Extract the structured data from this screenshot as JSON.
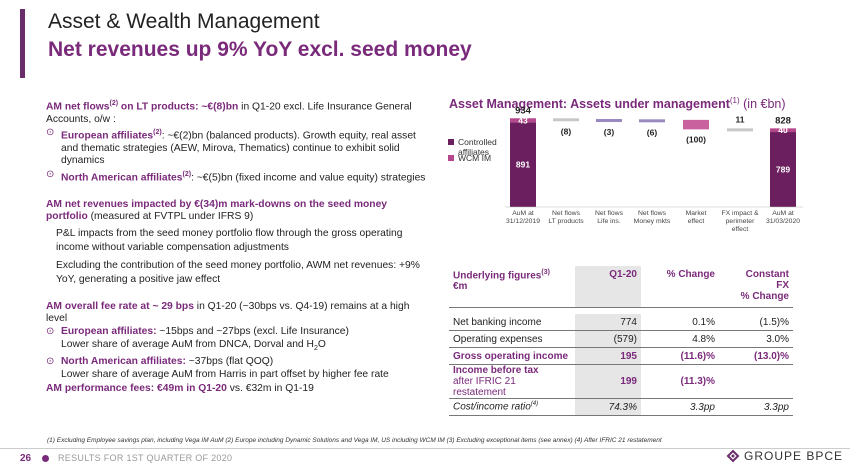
{
  "page": {
    "title": "Asset & Wealth Management",
    "subtitle": "Net revenues up 9% YoY excl. seed money",
    "page_number": "26",
    "footer_label": "RESULTS FOR 1ST QUARTER OF 2020",
    "brand": "GROUPE BPCE",
    "footnote": "(1) Excluding Employee savings plan, including Vega IM AuM (2) Europe including Dynamic Solutions and Vega IM, US including WCM IM (3) Excluding exceptional items (see annex) (4) After IFRIC 21 restatement"
  },
  "left": {
    "p1_lead": "AM net flows",
    "p1_sup": "(2)",
    "p1_lead2": " on LT products:  ~€(8)bn",
    "p1_rest": " in Q1-20 excl. Life Insurance General Accounts, o/w :",
    "b1_lead": "European affiliates",
    "b1_sup": "(2)",
    "b1_rest": ": ~€(2)bn (balanced products). Growth equity, real asset and thematic strategies (AEW, Mirova, Thematics) continue to exhibit solid dynamics",
    "b2_lead": "North American affiliates",
    "b2_sup": "(2)",
    "b2_rest": ": ~€(5)bn (fixed income and value equity) strategies",
    "p2_lead": "AM net revenues impacted by €(34)m mark-downs on the seed money portfolio",
    "p2_rest": " (measured at FVTPL under IFRS 9)",
    "p2_a": "P&L impacts from the seed money portfolio flow through the gross operating income without variable compensation adjustments",
    "p2_b": "Excluding the contribution of the seed money portfolio, AWM net revenues: +9% YoY, generating a positive jaw effect",
    "p3_lead": "AM overall fee rate at ~ 29 bps",
    "p3_rest": " in Q1-20 (~30bps vs. Q4-19) remains at a high level",
    "b3_lead": "European affiliates:",
    "b3_rest1": " ~15bps and ~27bps (excl. Life Insurance)",
    "b3_rest2a": "Lower share of average AuM from DNCA, Dorval and H",
    "b3_sub": "2",
    "b3_rest2b": "O",
    "b4_lead": "North American affiliates:",
    "b4_rest1": " ~37bps (flat QOQ)",
    "b4_rest2": "Lower share of average AuM from Harris in part offset by higher fee rate",
    "p4_lead": "AM performance fees: €49m in Q1-20",
    "p4_rest": " vs. €32m in Q1-19"
  },
  "chart_title": {
    "bold": "Asset Management: Assets under management",
    "sup": "(1)",
    "rest": " (in €bn)"
  },
  "chart_data": {
    "type": "waterfall",
    "title": "Asset Management: Assets under management(1) (in €bn)",
    "legend": [
      {
        "name": "Controlled affiliates",
        "color": "#6b1f5f"
      },
      {
        "name": "WCM IM",
        "color": "#b5488c"
      }
    ],
    "categories": [
      "AuM at 31/12/2019",
      "Net flows LT products",
      "Net flows Life ins.",
      "Net flows Money mkts",
      "Market effect",
      "FX impact & perimeter effect",
      "AuM at 31/03/2020"
    ],
    "category_lines": [
      [
        "AuM at",
        "31/12/2019"
      ],
      [
        "Net flows",
        "LT products"
      ],
      [
        "Net flows",
        "Life ins."
      ],
      [
        "Net flows",
        "Money mkts"
      ],
      [
        "Market",
        "effect"
      ],
      [
        "FX impact &",
        "perimeter",
        "effect"
      ],
      [
        "AuM at",
        "31/03/2020"
      ]
    ],
    "totals": [
      {
        "category": "AuM at 31/12/2019",
        "controlled": 891,
        "wcm": 43,
        "total": 934
      },
      {
        "category": "AuM at 31/03/2020",
        "controlled": 789,
        "wcm": 40,
        "total": 828
      }
    ],
    "deltas": [
      {
        "category": "Net flows LT products",
        "value": -8,
        "label": "(8)"
      },
      {
        "category": "Net flows Life ins.",
        "value": -3,
        "label": "(3)"
      },
      {
        "category": "Net flows Money mkts",
        "value": -6,
        "label": "(6)"
      },
      {
        "category": "Market effect",
        "value": -100,
        "label": "(100)"
      },
      {
        "category": "FX impact & perimeter effect",
        "value": 11,
        "label": "11"
      }
    ],
    "colors": {
      "controlled": "#6b1f5f",
      "wcm": "#b5488c",
      "lt": "#c8c8c8",
      "life": "#9a88c0",
      "mm": "#9a88c0",
      "market": "#c8619e",
      "fx": "#c8c8c8"
    }
  },
  "table": {
    "header": {
      "label1": "Underlying figures",
      "sup": "(3)",
      "label2": "€m",
      "col1": "Q1-20",
      "col2": "% Change",
      "col3a": "Constant",
      "col3b": "FX",
      "col3c": "% Change"
    },
    "rows": [
      {
        "label": "Net banking income",
        "q1": "774",
        "chg": "0.1%",
        "fx": "(1.5)%"
      },
      {
        "label": "Operating expenses",
        "q1": "(579)",
        "chg": "4.8%",
        "fx": "3.0%"
      },
      {
        "label": "Gross operating income",
        "q1": "195",
        "chg": "(11.6)%",
        "fx": "(13.0)%"
      },
      {
        "label": "Income before tax",
        "sub": "after IFRIC 21 restatement",
        "q1": "199",
        "chg": "(11.3)%",
        "fx": ""
      },
      {
        "label": "Cost/income ratio",
        "sup": "(4)",
        "q1": "74.3%",
        "chg": "3.3pp",
        "fx": "3.3pp"
      }
    ]
  }
}
